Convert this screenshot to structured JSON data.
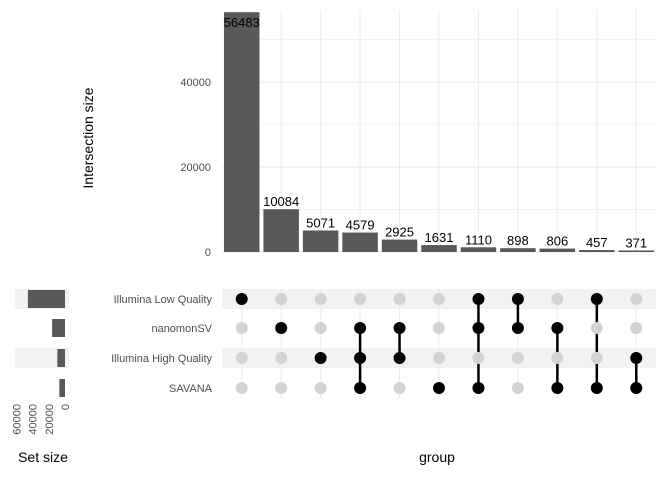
{
  "chart_data": {
    "type": "bar",
    "title": "",
    "xlabel": "group",
    "ylabel": "Intersection size",
    "set_size_label": "Set size",
    "ylim": [
      0,
      57000
    ],
    "yticks": [
      0,
      20000,
      40000
    ],
    "set_size_ticks": [
      60000,
      40000,
      20000,
      0
    ],
    "set_size_max": 62000,
    "sets": [
      "Illumina Low Quality",
      "nanomonSV",
      "Illumina High Quality",
      "SAVANA"
    ],
    "set_sizes": [
      46000,
      16000,
      9500,
      7000
    ],
    "intersections": [
      {
        "value": 56483,
        "label": "56483",
        "members": [
          0
        ]
      },
      {
        "value": 10084,
        "label": "10084",
        "members": [
          1
        ]
      },
      {
        "value": 5071,
        "label": "5071",
        "members": [
          2
        ]
      },
      {
        "value": 4579,
        "label": "4579",
        "members": [
          1,
          2,
          3
        ]
      },
      {
        "value": 2925,
        "label": "2925",
        "members": [
          1,
          2
        ]
      },
      {
        "value": 1631,
        "label": "1631",
        "members": [
          3
        ]
      },
      {
        "value": 1110,
        "label": "1110",
        "members": [
          0,
          1,
          3
        ]
      },
      {
        "value": 898,
        "label": "898",
        "members": [
          0,
          1
        ]
      },
      {
        "value": 806,
        "label": "806",
        "members": [
          1,
          3
        ]
      },
      {
        "value": 457,
        "label": "457",
        "members": [
          0,
          3
        ]
      },
      {
        "value": 371,
        "label": "371",
        "members": [
          2,
          3
        ]
      }
    ],
    "grid": true,
    "colors": {
      "bar": "#595959",
      "dot_active": "#000000",
      "dot_inactive": "#d3d3d3",
      "grid": "#ebebeb",
      "stripe": "#f2f2f2"
    }
  }
}
